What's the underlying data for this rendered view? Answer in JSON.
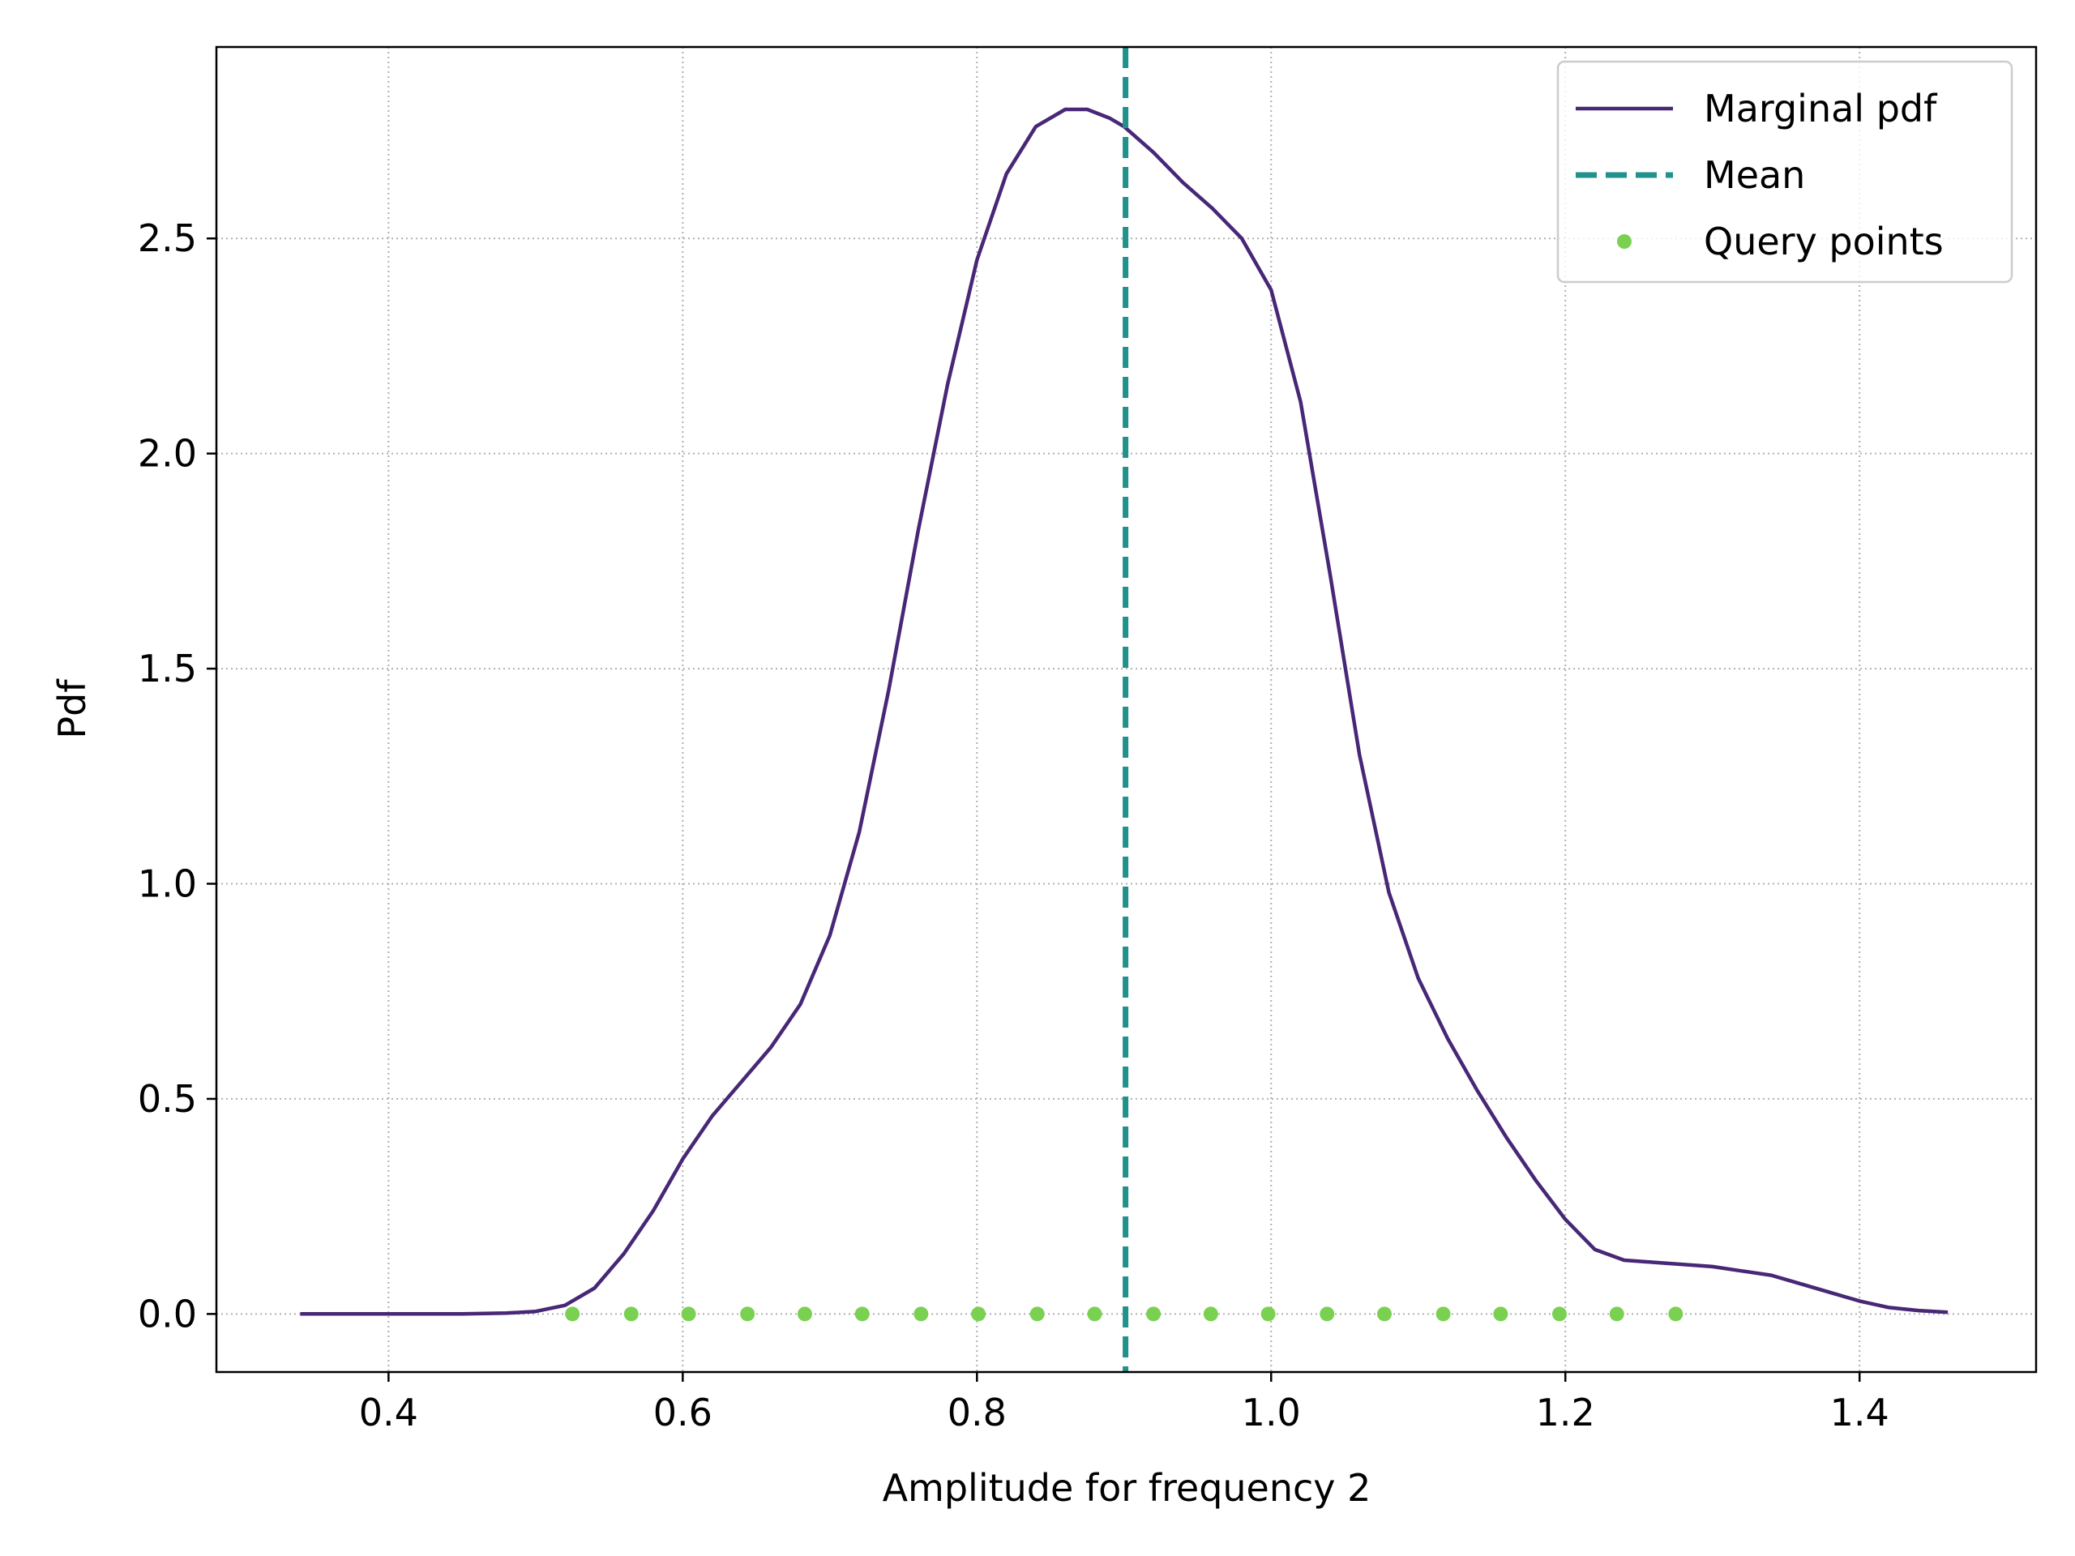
{
  "chart_data": {
    "type": "line",
    "title": "",
    "xlabel": "Amplitude for frequency 2",
    "ylabel": "Pdf",
    "xlim": [
      0.283,
      1.52
    ],
    "ylim": [
      -0.135,
      2.945
    ],
    "grid": true,
    "legend_position": "top-right",
    "x_ticks": [
      0.4,
      0.6,
      0.8,
      1.0,
      1.2,
      1.4
    ],
    "x_tick_labels": [
      "0.4",
      "0.6",
      "0.8",
      "1.0",
      "1.2",
      "1.4"
    ],
    "y_ticks": [
      0.0,
      0.5,
      1.0,
      1.5,
      2.0,
      2.5
    ],
    "y_tick_labels": [
      "0.0",
      "0.5",
      "1.0",
      "1.5",
      "2.0",
      "2.5"
    ],
    "colors": {
      "pdf": "#472776",
      "mean": "#21918c",
      "query": "#7ad151"
    },
    "series": [
      {
        "name": "Marginal pdf",
        "kind": "line",
        "x": [
          0.34,
          0.4,
          0.45,
          0.48,
          0.5,
          0.52,
          0.54,
          0.56,
          0.58,
          0.6,
          0.62,
          0.64,
          0.66,
          0.68,
          0.7,
          0.72,
          0.74,
          0.76,
          0.78,
          0.8,
          0.82,
          0.84,
          0.86,
          0.875,
          0.89,
          0.9,
          0.92,
          0.94,
          0.96,
          0.98,
          1.0,
          1.02,
          1.04,
          1.06,
          1.08,
          1.1,
          1.12,
          1.14,
          1.16,
          1.18,
          1.2,
          1.22,
          1.24,
          1.26,
          1.28,
          1.3,
          1.32,
          1.34,
          1.36,
          1.38,
          1.4,
          1.42,
          1.44,
          1.46
        ],
        "y": [
          0.0,
          0.0,
          0.0,
          0.002,
          0.006,
          0.02,
          0.06,
          0.14,
          0.24,
          0.36,
          0.46,
          0.54,
          0.62,
          0.72,
          0.88,
          1.12,
          1.45,
          1.82,
          2.16,
          2.45,
          2.65,
          2.76,
          2.8,
          2.8,
          2.78,
          2.76,
          2.7,
          2.63,
          2.57,
          2.5,
          2.38,
          2.12,
          1.72,
          1.3,
          0.98,
          0.78,
          0.64,
          0.52,
          0.41,
          0.31,
          0.22,
          0.15,
          0.125,
          0.12,
          0.115,
          0.11,
          0.1,
          0.09,
          0.07,
          0.05,
          0.03,
          0.015,
          0.008,
          0.004
        ]
      },
      {
        "name": "Mean",
        "kind": "vline",
        "x": 0.901
      },
      {
        "name": "Query points",
        "kind": "scatter",
        "x": [
          0.525,
          0.565,
          0.604,
          0.644,
          0.683,
          0.722,
          0.762,
          0.801,
          0.841,
          0.88,
          0.92,
          0.959,
          0.998,
          1.038,
          1.077,
          1.117,
          1.156,
          1.196,
          1.235,
          1.275
        ],
        "y": [
          0,
          0,
          0,
          0,
          0,
          0,
          0,
          0,
          0,
          0,
          0,
          0,
          0,
          0,
          0,
          0,
          0,
          0,
          0,
          0
        ]
      }
    ]
  }
}
